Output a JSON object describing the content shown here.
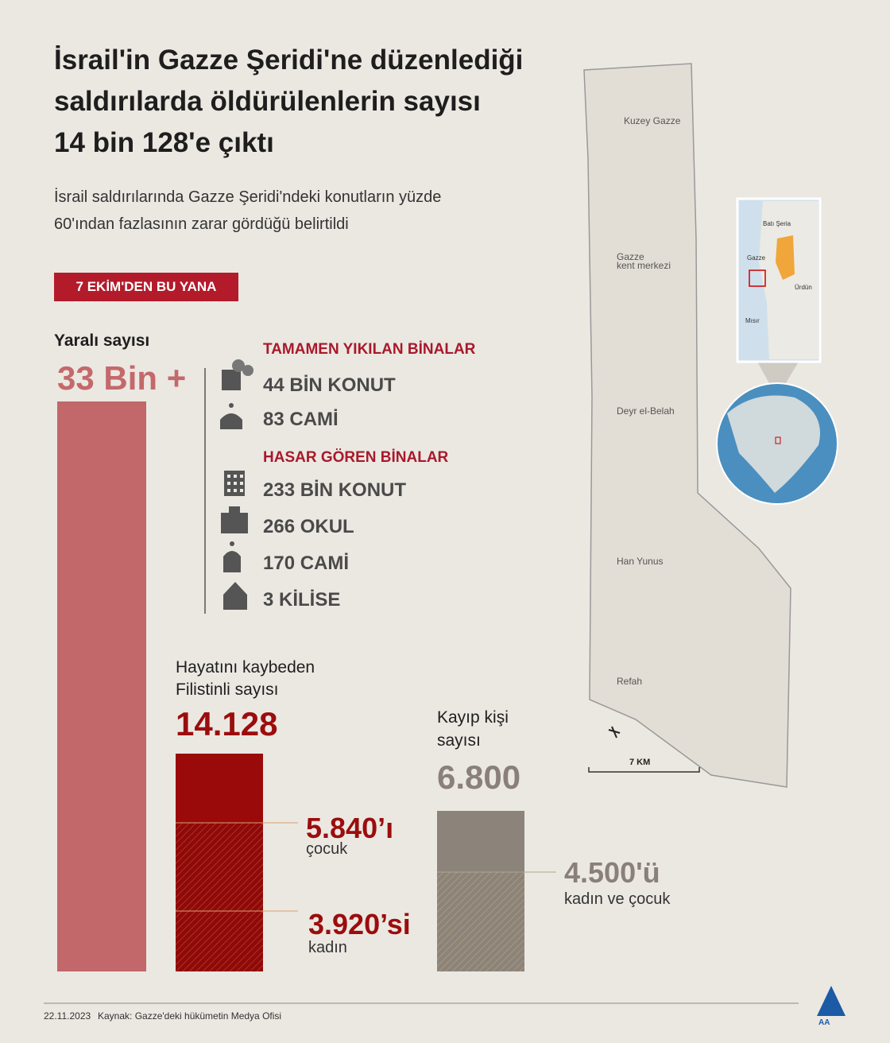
{
  "header": {
    "title_lines": [
      "İsrail'in Gazze Şeridi'ne düzenlediği",
      "saldırılarda öldürülenlerin sayısı",
      "14 bin 128'e çıktı"
    ],
    "subtitle_lines": [
      "İsrail saldırılarında Gazze Şeridi'ndeki konutların yüzde",
      "60'ından fazlasının zarar gördüğü belirtildi"
    ]
  },
  "badge": "7 EKİM'DEN  BU YANA",
  "wounded": {
    "label": "Yaralı sayısı",
    "value": "33 Bin +"
  },
  "destroyed": {
    "title": "TAMAMEN YIKILAN BİNALAR",
    "items": [
      "44 BİN KONUT",
      "83 CAMİ"
    ]
  },
  "damaged": {
    "title": "HASAR GÖREN BİNALAR",
    "items": [
      "233 BİN KONUT",
      "266 OKUL",
      "170 CAMİ",
      "3 KİLİSE"
    ]
  },
  "killed": {
    "label_lines": [
      "Hayatını kaybeden",
      "Filistinli sayısı"
    ],
    "value": "14.128",
    "children": {
      "value": "5.840’ı",
      "label": "çocuk"
    },
    "women": {
      "value": "3.920’si",
      "label": "kadın"
    }
  },
  "missing": {
    "label_lines": [
      "Kayıp kişi",
      "sayısı"
    ],
    "value": "6.800",
    "breakdown": {
      "value": "4.500'ü",
      "label": "kadın ve çocuk"
    }
  },
  "map": {
    "regions": [
      [
        "Kuzey Gazze"
      ],
      [
        "Gazze",
        "kent merkezi"
      ],
      [
        "Deyr el-Belah"
      ],
      [
        "Han Yunus"
      ],
      [
        "Refah"
      ]
    ],
    "scale": "7 KM",
    "inset": [
      "Batı Şeria",
      "Gazze",
      "Ürdün",
      "Mısır"
    ]
  },
  "footer": {
    "date": "22.11.2023",
    "source": "Kaynak: Gazze'deki hükümetin Medya Ofisi",
    "logo": "AA"
  }
}
